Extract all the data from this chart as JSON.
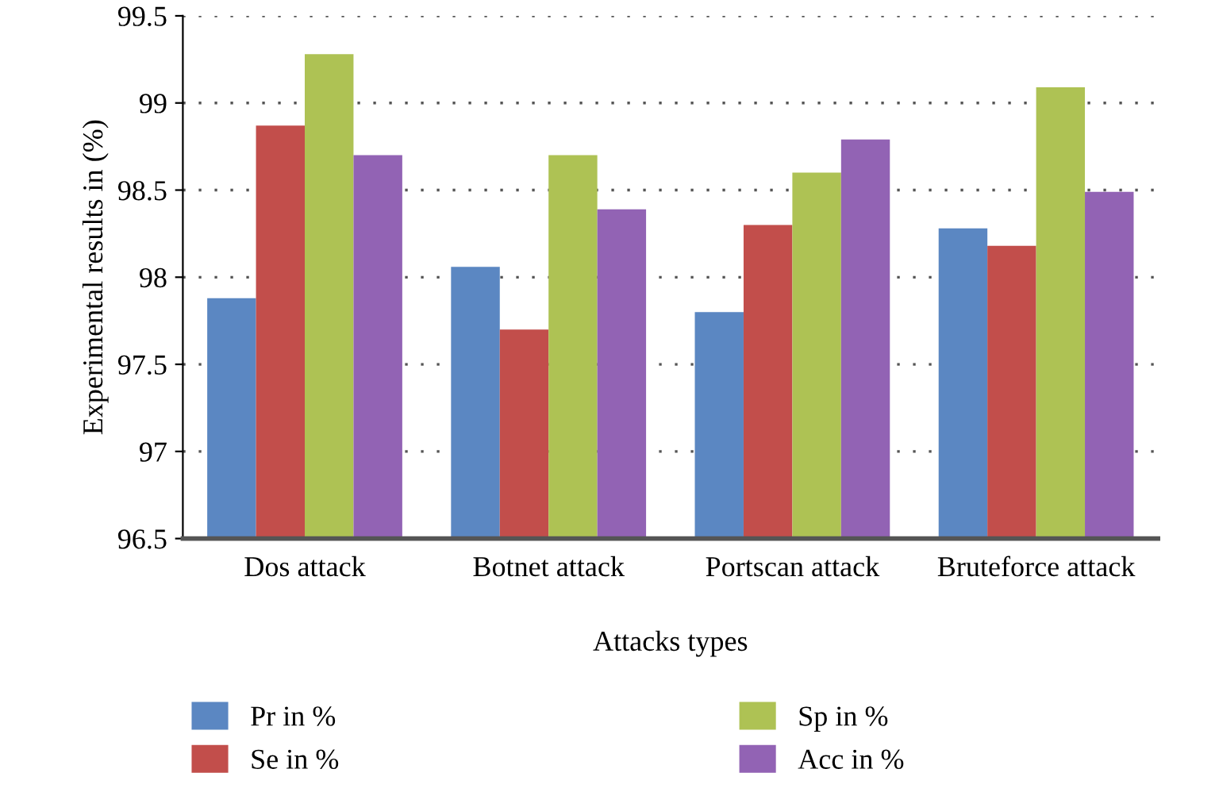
{
  "chart_data": {
    "type": "bar",
    "xlabel": "Attacks types",
    "ylabel": "Experimental results in (%)",
    "categories": [
      "Dos attack",
      "Botnet attack",
      "Portscan attack",
      "Bruteforce attack"
    ],
    "series": [
      {
        "name": "Pr in %",
        "color": "#5b87c2",
        "values": [
          97.88,
          98.06,
          97.8,
          98.28
        ]
      },
      {
        "name": "Se in %",
        "color": "#c24e4b",
        "values": [
          98.87,
          97.7,
          98.3,
          98.18
        ]
      },
      {
        "name": "Sp in %",
        "color": "#aec254",
        "values": [
          99.28,
          98.7,
          98.6,
          99.09
        ]
      },
      {
        "name": "Acc in %",
        "color": "#9263b4",
        "values": [
          98.7,
          98.39,
          98.79,
          98.49
        ]
      }
    ],
    "ylim": [
      96.5,
      99.5
    ],
    "yticks": [
      96.5,
      97,
      97.5,
      98,
      98.5,
      99,
      99.5
    ],
    "grid": "y",
    "legend": "bottom"
  }
}
